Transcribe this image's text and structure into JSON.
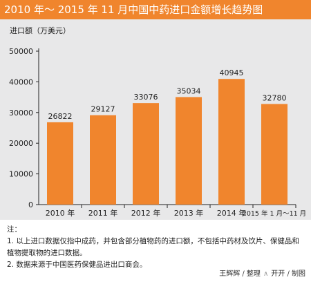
{
  "title": "2010 年～ 2015 年 11 月中国中药进口金额增长趋势图",
  "colors": {
    "accent": "#f0852d",
    "bar": "#f0852d",
    "panel": "#e8e8e9"
  },
  "chart_data": {
    "type": "bar",
    "title": "2010 年～ 2015 年 11 月中国中药进口金额增长趋势图",
    "ylabel": "进口额（万美元）",
    "xlabel": "",
    "categories": [
      "2010 年",
      "2011 年",
      "2012 年",
      "2013 年",
      "2014 年",
      "2015 年 1 月～11 月"
    ],
    "values": [
      26822,
      29127,
      33076,
      35034,
      40945,
      32780
    ],
    "ylim": [
      0,
      50000
    ],
    "yticks": [
      0,
      10000,
      20000,
      30000,
      40000,
      50000
    ],
    "grid": false,
    "legend": "none"
  },
  "notes": {
    "heading": "注：",
    "items": [
      "1. 以上进口数据仅指中成药，并包含部分植物药的进口额，不包括中药材及饮片、保健品和植物提取物的进口数据。",
      "2. 数据来源于中国医药保健品进出口商会。"
    ]
  },
  "credit": {
    "author": "王辉辉 / 整理",
    "designer": "开开 / 制图"
  }
}
